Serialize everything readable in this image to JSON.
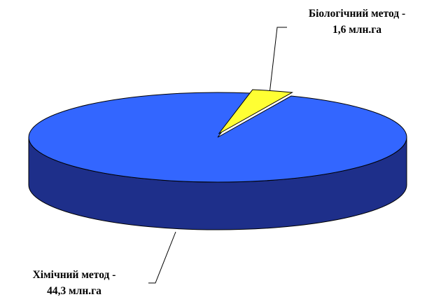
{
  "chart_data": {
    "type": "pie",
    "style": "3d",
    "slices": [
      {
        "name": "Хімічний метод",
        "value": 44.3,
        "unit": "млн.га",
        "label_line1": "Хімічний метод -",
        "label_line2": "44,3 млн.га",
        "color": "#3366ff",
        "side_color": "#1e2f8a"
      },
      {
        "name": "Біологічний метод",
        "value": 1.6,
        "unit": "млн.га",
        "label_line1": "Біологічний метод -",
        "label_line2": "1,6 млн.га",
        "color": "#ffff33",
        "exploded": true
      }
    ],
    "legend": "none"
  }
}
